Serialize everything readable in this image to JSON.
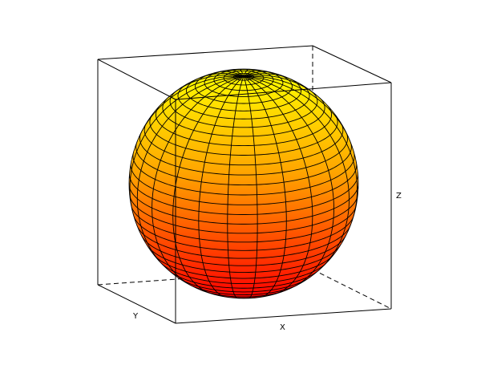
{
  "chart_data": {
    "type": "surface3d",
    "surface": "sphere",
    "xlabel": "X",
    "ylabel": "Y",
    "zlabel": "Z",
    "latitude_lines": 36,
    "longitude_lines": 24,
    "colormap": [
      "#ff0000",
      "#ffff00"
    ],
    "colormap_by": "z",
    "mesh_color": "#000000",
    "box": true
  }
}
